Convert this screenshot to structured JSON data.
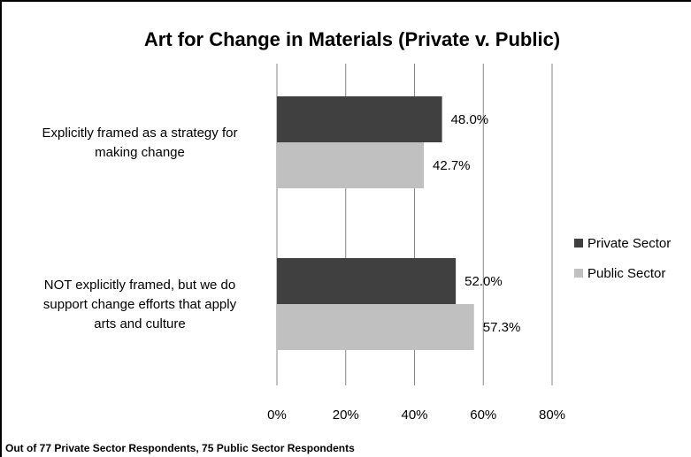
{
  "chart_data": {
    "type": "bar",
    "orientation": "horizontal",
    "title": "Art for Change in Materials (Private v. Public)",
    "categories": [
      [
        "Explicitly framed as a strategy for",
        "making change"
      ],
      [
        "NOT explicitly framed, but we do",
        "support change efforts that apply",
        "arts and culture"
      ]
    ],
    "series": [
      {
        "name": "Private Sector",
        "color": "#404040",
        "values": [
          48.0,
          52.0
        ],
        "labels": [
          "48.0%",
          "52.0%"
        ]
      },
      {
        "name": "Public Sector",
        "color": "#c0c0c0",
        "values": [
          42.7,
          57.3
        ],
        "labels": [
          "42.7%",
          "57.3%"
        ]
      }
    ],
    "xlim": [
      0,
      80
    ],
    "ticks": [
      0,
      20,
      40,
      60,
      80
    ],
    "tick_labels": [
      "0%",
      "20%",
      "40%",
      "60%",
      "80%"
    ],
    "grid": true,
    "legend_position": "right",
    "footnote": "Out of 77 Private Sector Respondents, 75 Public Sector Respondents"
  }
}
